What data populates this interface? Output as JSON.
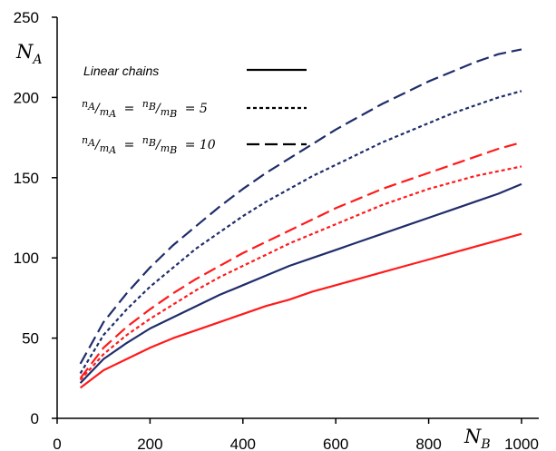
{
  "chart_data": {
    "type": "line",
    "xlabel": "N",
    "xlabel_sub": "B",
    "ylabel": "N",
    "ylabel_sub": "A",
    "xlim": [
      0,
      1000
    ],
    "ylim": [
      0,
      250
    ],
    "xticks": [
      0,
      200,
      400,
      600,
      800,
      1000
    ],
    "yticks": [
      0,
      50,
      100,
      150,
      200,
      250
    ],
    "grid": false,
    "legend_position": "top-left",
    "legend": [
      {
        "label": "Linear chains",
        "style": "solid"
      },
      {
        "label": "nA/mA = nB/mB = 5",
        "style": "dotted"
      },
      {
        "label": "nA/mA = nB/mB = 10",
        "style": "dashed"
      }
    ],
    "legend_math": {
      "n": "n",
      "a": "A",
      "m": "m",
      "b": "B",
      "eq": "=",
      "five": "= 5",
      "ten": "= 10",
      "slash": "/"
    },
    "x": [
      50,
      100,
      150,
      200,
      250,
      300,
      350,
      400,
      450,
      500,
      550,
      600,
      650,
      700,
      750,
      800,
      850,
      900,
      950,
      1000
    ],
    "series": [
      {
        "color": "#1f2d6b",
        "style": "solid",
        "values": [
          22,
          37,
          47,
          56,
          63,
          70,
          77,
          83,
          89,
          95,
          100,
          105,
          110,
          115,
          120,
          125,
          130,
          135,
          140,
          146
        ]
      },
      {
        "color": "#1f2d6b",
        "style": "dotted",
        "values": [
          28,
          52,
          68,
          82,
          94,
          106,
          116,
          126,
          135,
          143,
          151,
          158,
          165,
          172,
          178,
          184,
          190,
          195,
          200,
          204
        ]
      },
      {
        "color": "#1f2d6b",
        "style": "dashed",
        "values": [
          34,
          60,
          78,
          94,
          108,
          120,
          132,
          143,
          153,
          162,
          171,
          180,
          188,
          196,
          203,
          210,
          216,
          222,
          227,
          230
        ]
      },
      {
        "color": "#ff1a1a",
        "style": "solid",
        "values": [
          19,
          30,
          37,
          44,
          50,
          55,
          60,
          65,
          70,
          74,
          79,
          83,
          87,
          91,
          95,
          99,
          103,
          107,
          111,
          115
        ]
      },
      {
        "color": "#ff1a1a",
        "style": "dotted",
        "values": [
          24,
          40,
          52,
          62,
          71,
          80,
          88,
          95,
          102,
          109,
          115,
          121,
          127,
          133,
          138,
          143,
          147,
          151,
          154,
          157
        ]
      },
      {
        "color": "#ff1a1a",
        "style": "dashed",
        "values": [
          25,
          44,
          57,
          68,
          78,
          87,
          95,
          103,
          110,
          117,
          124,
          131,
          137,
          143,
          148,
          153,
          158,
          163,
          168,
          172
        ]
      }
    ]
  }
}
